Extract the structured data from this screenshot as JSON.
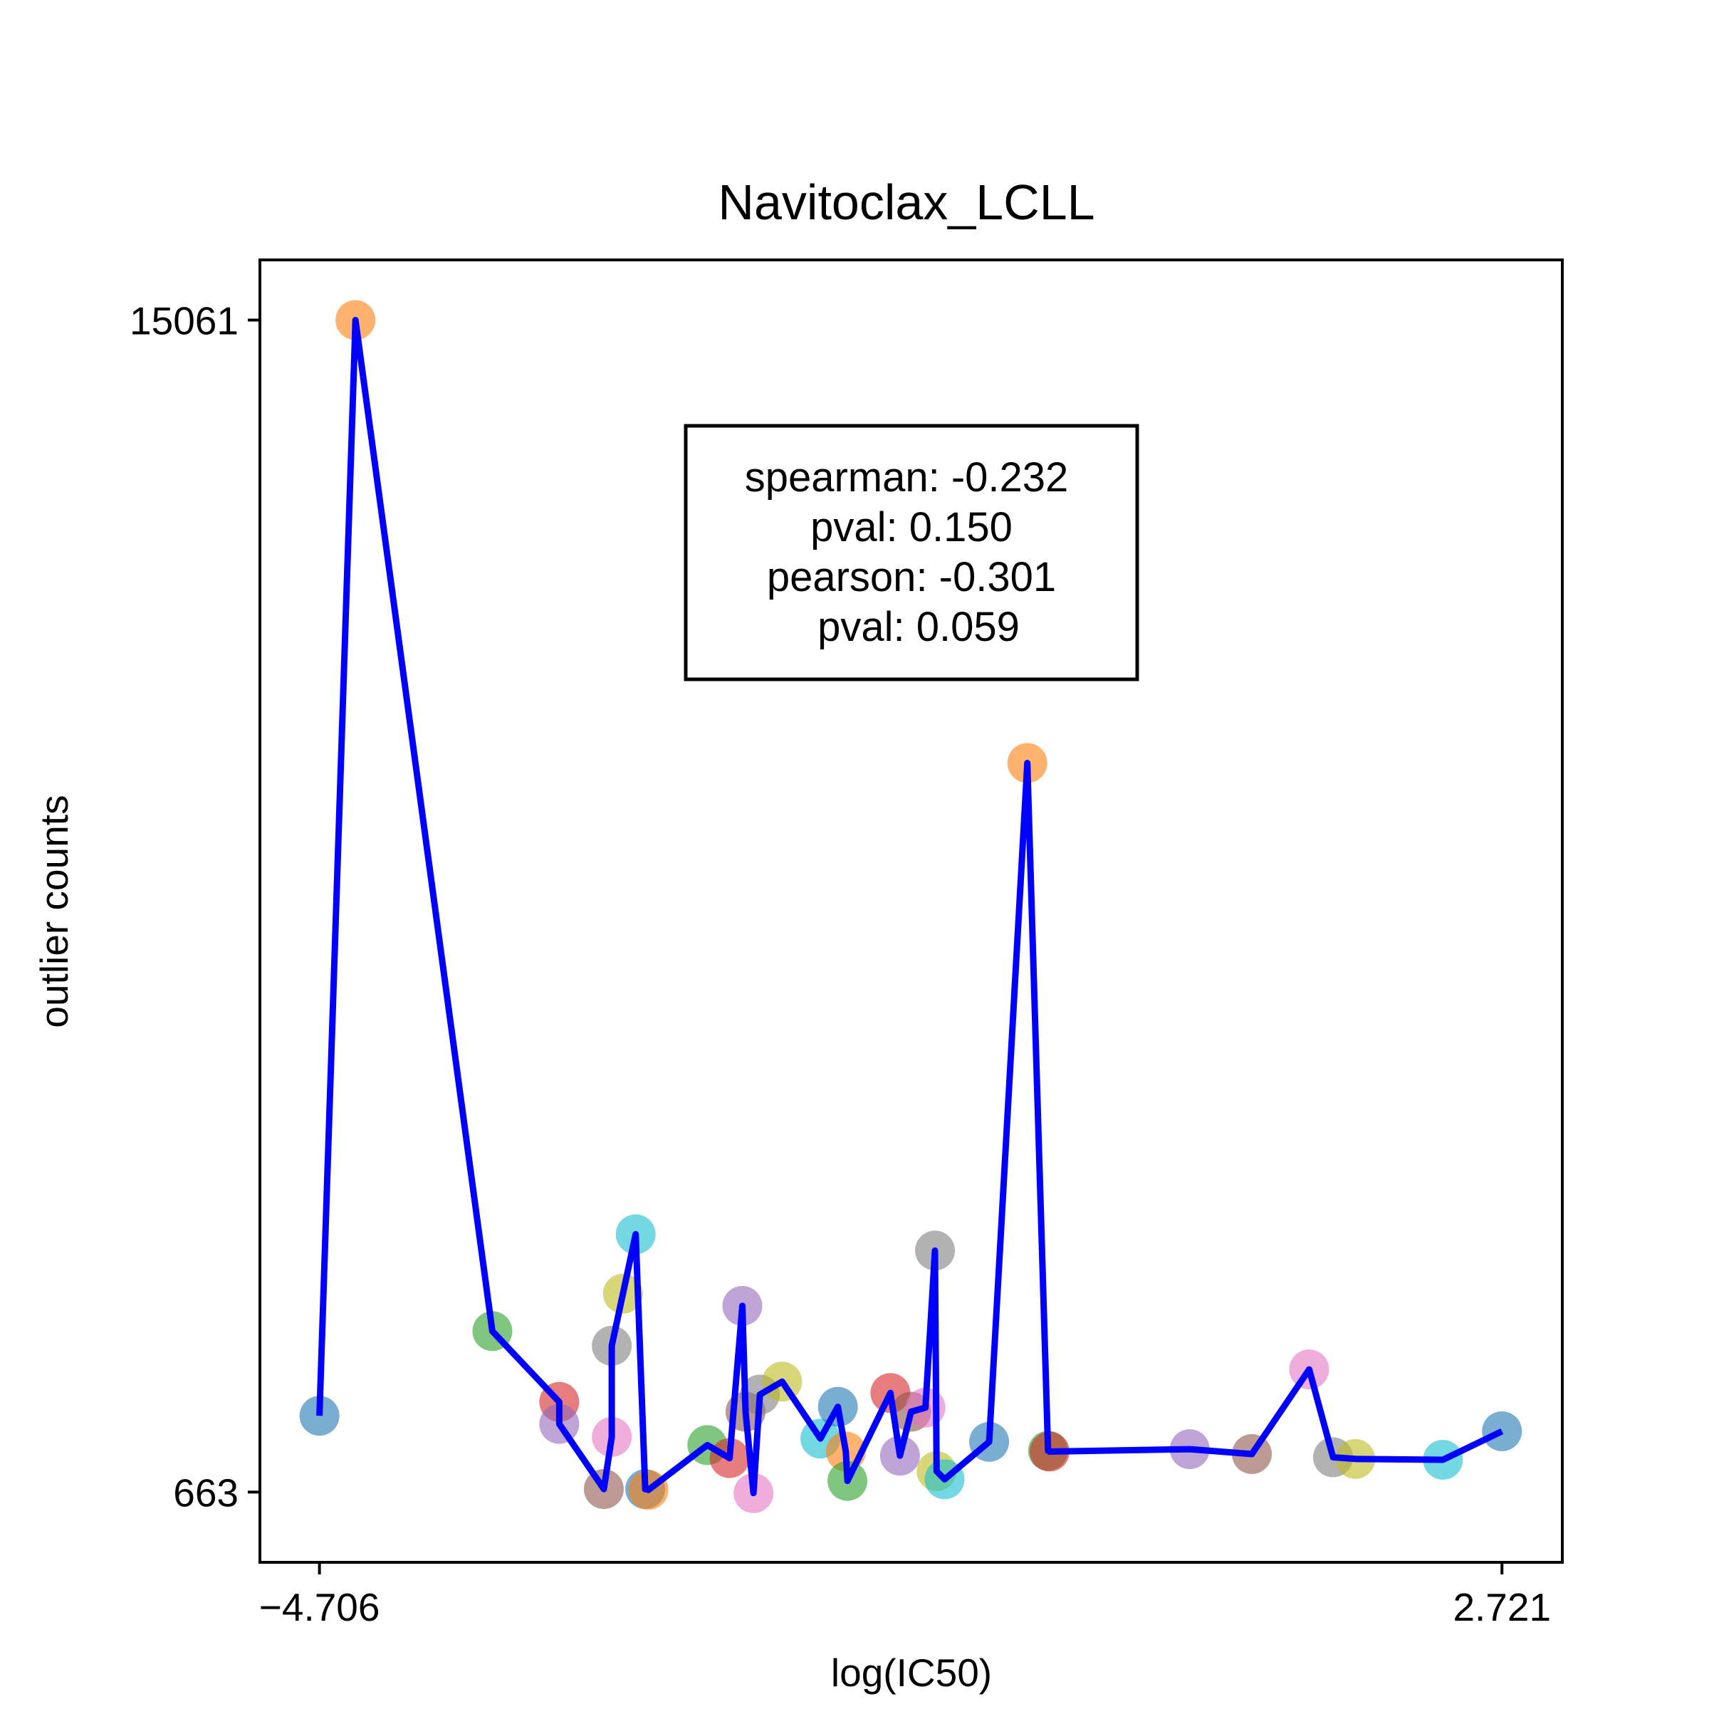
{
  "chart_data": {
    "type": "scatter",
    "title": "Navitoclax_LCLL",
    "xlabel": "log(IC50)",
    "ylabel": "outlier counts",
    "xlim": [
      -5.08,
      3.1
    ],
    "ylim": [
      -200,
      15800
    ],
    "xticks": [
      -4.706,
      2.721
    ],
    "xtick_labels": [
      "−4.706",
      "2.721"
    ],
    "yticks": [
      663,
      15061
    ],
    "ytick_labels": [
      "663",
      "15061"
    ],
    "grid": false,
    "annotation": {
      "lines": [
        "spearman: -0.232",
        "pval: 0.150",
        "pearson: -0.301",
        "pval: 0.059"
      ],
      "placement": "upper-center"
    },
    "line_color": "#0000ff",
    "palette": [
      "#1f77b4",
      "#ff7f0e",
      "#2ca02c",
      "#d62728",
      "#9467bd",
      "#8c564b",
      "#e377c2",
      "#7f7f7f",
      "#bcbd22",
      "#17becf"
    ],
    "points": [
      {
        "x": -4.706,
        "y": 1600
      },
      {
        "x": -4.48,
        "y": 15061
      },
      {
        "x": -3.62,
        "y": 2640
      },
      {
        "x": -3.2,
        "y": 1770
      },
      {
        "x": -3.2,
        "y": 1500
      },
      {
        "x": -2.92,
        "y": 700
      },
      {
        "x": -2.87,
        "y": 1340
      },
      {
        "x": -2.87,
        "y": 2460
      },
      {
        "x": -2.8,
        "y": 3100
      },
      {
        "x": -2.72,
        "y": 3830
      },
      {
        "x": -2.66,
        "y": 700
      },
      {
        "x": -2.64,
        "y": 690
      },
      {
        "x": -2.27,
        "y": 1240
      },
      {
        "x": -2.13,
        "y": 1080
      },
      {
        "x": -2.05,
        "y": 2950
      },
      {
        "x": -2.03,
        "y": 1650
      },
      {
        "x": -1.98,
        "y": 650
      },
      {
        "x": -1.94,
        "y": 1860
      },
      {
        "x": -1.8,
        "y": 2020
      },
      {
        "x": -1.56,
        "y": 1320
      },
      {
        "x": -1.45,
        "y": 1710
      },
      {
        "x": -1.4,
        "y": 1160
      },
      {
        "x": -1.39,
        "y": 800
      },
      {
        "x": -1.12,
        "y": 1880
      },
      {
        "x": -1.06,
        "y": 1110
      },
      {
        "x": -0.99,
        "y": 1650
      },
      {
        "x": -0.9,
        "y": 1700
      },
      {
        "x": -0.84,
        "y": 3630
      },
      {
        "x": -0.83,
        "y": 920
      },
      {
        "x": -0.78,
        "y": 820
      },
      {
        "x": -0.5,
        "y": 1280
      },
      {
        "x": -0.26,
        "y": 9620
      },
      {
        "x": -0.13,
        "y": 1170
      },
      {
        "x": -0.12,
        "y": 1160
      },
      {
        "x": 0.76,
        "y": 1190
      },
      {
        "x": 1.15,
        "y": 1130
      },
      {
        "x": 1.51,
        "y": 2170
      },
      {
        "x": 1.66,
        "y": 1090
      },
      {
        "x": 1.8,
        "y": 1070
      },
      {
        "x": 2.35,
        "y": 1060
      },
      {
        "x": 2.721,
        "y": 1410
      }
    ]
  }
}
